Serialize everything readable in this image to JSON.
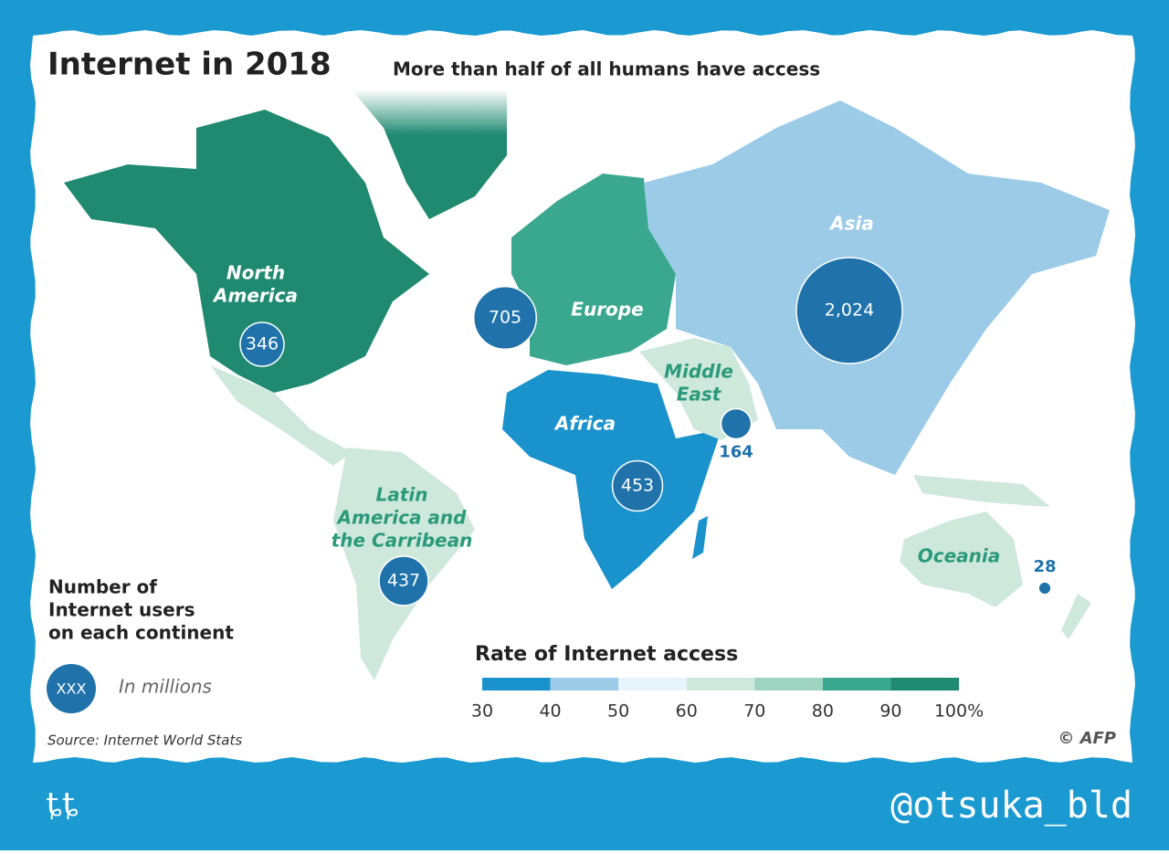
{
  "header": {
    "title": "Internet in 2018",
    "subtitle": "More than half of all humans have access"
  },
  "continents": [
    {
      "name": [
        "North",
        "America"
      ],
      "users": {
        "value": 346,
        "label": "346"
      }
    },
    {
      "name": [
        "Europe"
      ],
      "users": {
        "value": 705,
        "label": "705"
      }
    },
    {
      "name": [
        "Asia"
      ],
      "users": {
        "value": 2024,
        "label": "2,024"
      }
    },
    {
      "name": [
        "Africa"
      ],
      "users": {
        "value": 453,
        "label": "453"
      }
    },
    {
      "name": [
        "Latin",
        "America and",
        "the Carribean"
      ],
      "users": {
        "value": 437,
        "label": "437"
      }
    },
    {
      "name": [
        "Middle",
        "East"
      ],
      "users": {
        "value": 164,
        "label": "164"
      }
    },
    {
      "name": [
        "Oceania"
      ],
      "users": {
        "value": 28,
        "label": "28"
      }
    }
  ],
  "bubble_legend": {
    "title": [
      "Number of",
      "Internet users",
      "on each continent"
    ],
    "sample": "XXX",
    "unit": "In millions"
  },
  "colorbar": {
    "title": "Rate of Internet access",
    "colors": [
      "#1a93cc",
      "#9ccbe8",
      "#e8f4fb",
      "#cfe8dc",
      "#9fd3c1",
      "#3aa88e",
      "#1f8a70"
    ],
    "ticks": [
      30,
      40,
      50,
      60,
      70,
      80,
      90,
      {
        "value": 100,
        "label": "100%"
      }
    ]
  },
  "source": "Source: Internet World Stats",
  "credit": "© AFP",
  "signature": "@otsuka_bld",
  "logo": "ȶȶ"
}
